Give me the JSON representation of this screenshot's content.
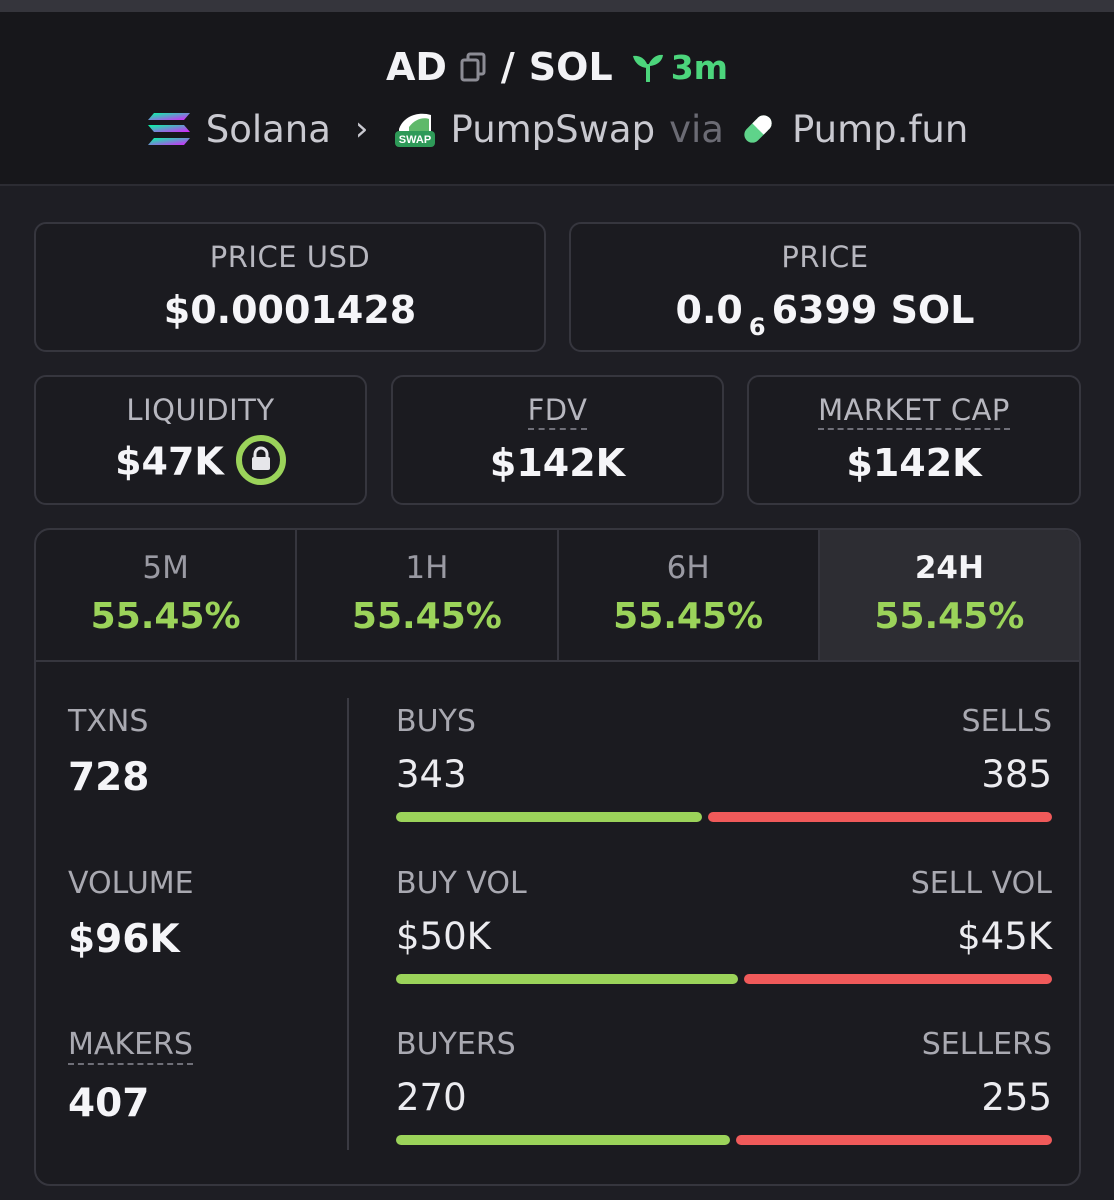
{
  "pair": {
    "base": "AD",
    "separator": "/",
    "quote": "SOL",
    "age": "3m"
  },
  "route": {
    "chain": "Solana",
    "dex": "PumpSwap",
    "via_word": "via",
    "launchpad": "Pump.fun",
    "swap_badge": "SWAP"
  },
  "cards": {
    "price_usd": {
      "label": "PRICE USD",
      "value": "$0.0001428"
    },
    "price_native": {
      "label": "PRICE",
      "prefix": "0.0",
      "subscript": "6",
      "digits": "6399",
      "unit": "SOL"
    },
    "liquidity": {
      "label": "LIQUIDITY",
      "value": "$47K"
    },
    "fdv": {
      "label": "FDV",
      "value": "$142K"
    },
    "market_cap": {
      "label": "MARKET CAP",
      "value": "$142K"
    }
  },
  "tabs": [
    {
      "label": "5M",
      "change": "55.45%"
    },
    {
      "label": "1H",
      "change": "55.45%"
    },
    {
      "label": "6H",
      "change": "55.45%"
    },
    {
      "label": "24H",
      "change": "55.45%"
    }
  ],
  "stats": {
    "txns": {
      "label": "TXNS",
      "value": "728"
    },
    "volume": {
      "label": "VOLUME",
      "value": "$96K"
    },
    "makers": {
      "label": "MAKERS",
      "value": "407"
    }
  },
  "ratios": {
    "txns": {
      "left_label": "BUYS",
      "right_label": "SELLS",
      "left_value": "343",
      "right_value": "385",
      "buy_fraction": 0.471
    },
    "volume": {
      "left_label": "BUY VOL",
      "right_label": "SELL VOL",
      "left_value": "$50K",
      "right_value": "$45K",
      "buy_fraction": 0.526
    },
    "makers": {
      "left_label": "BUYERS",
      "right_label": "SELLERS",
      "left_value": "270",
      "right_value": "255",
      "buy_fraction": 0.514
    }
  },
  "colors": {
    "buy": "#9bd35a",
    "sell": "#f05a5a",
    "age": "#4cd57c"
  },
  "icons": {
    "copy": "copy-icon",
    "sprout": "sprout-icon",
    "solana": "solana-logo-icon",
    "pumpswap": "pumpswap-logo-icon",
    "pill": "pump-pill-icon",
    "lock": "lock-icon",
    "chevron": "chevron-right-icon"
  }
}
